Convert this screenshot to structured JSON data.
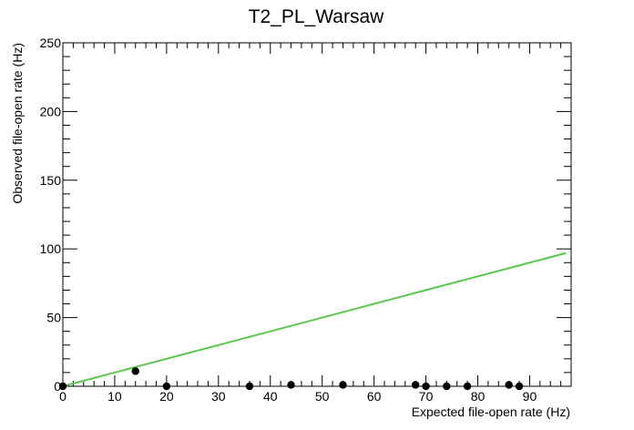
{
  "chart_data": {
    "type": "scatter",
    "title": "T2_PL_Warsaw",
    "xlabel": "Expected file-open rate (Hz)",
    "ylabel": "Observed file-open rate (Hz)",
    "xlim": [
      0,
      98
    ],
    "ylim": [
      0,
      250
    ],
    "x_ticks": [
      0,
      10,
      20,
      30,
      40,
      50,
      60,
      70,
      80,
      90
    ],
    "y_ticks": [
      0,
      50,
      100,
      150,
      200,
      250
    ],
    "grid": false,
    "points": {
      "x": [
        0,
        14,
        20,
        36,
        44,
        54,
        68,
        70,
        74,
        78,
        86,
        88
      ],
      "y": [
        0,
        11,
        0,
        0,
        1,
        1,
        1,
        0,
        0,
        0,
        1,
        0
      ]
    },
    "reference_line": {
      "x": [
        0,
        97
      ],
      "y": [
        0,
        97
      ]
    },
    "colors": {
      "points": "#000000",
      "reference_line": "#57c84b",
      "axes": "#000000"
    }
  }
}
